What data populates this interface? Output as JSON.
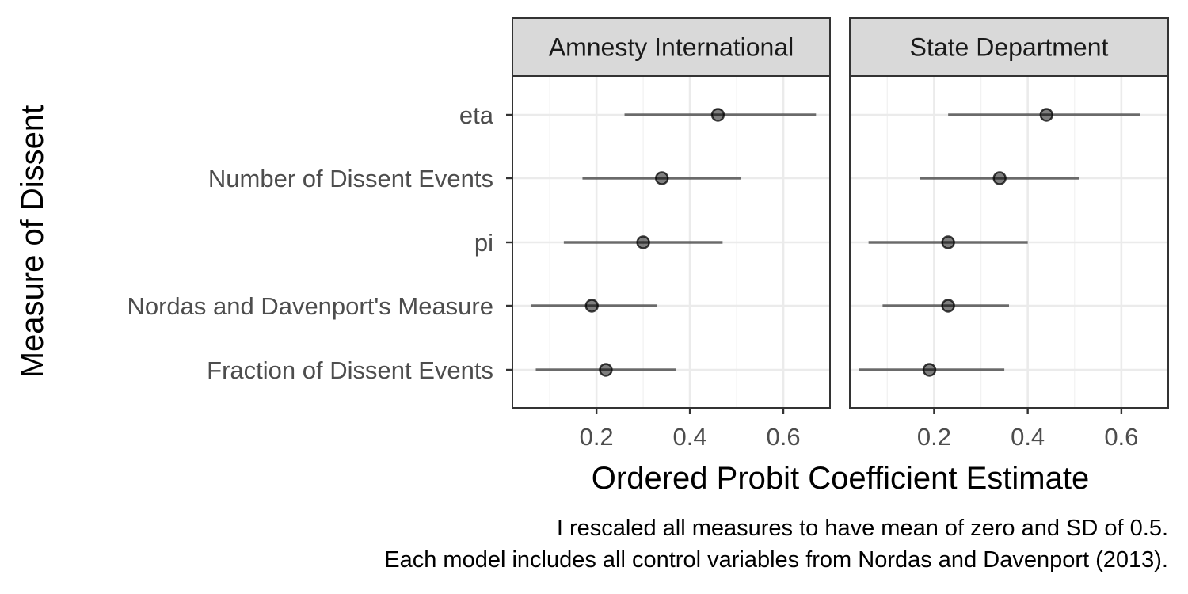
{
  "chart_data": {
    "type": "scatter",
    "subtype": "coefficient-plot-with-intervals",
    "xlabel": "Ordered Probit Coefficient Estimate",
    "ylabel": "Measure of Dissent",
    "caption_lines": [
      "I rescaled all measures to have mean of zero and SD of 0.5.",
      "Each model includes all control variables from Nordas and Davenport (2013)."
    ],
    "xlim": [
      0.02,
      0.7
    ],
    "x_ticks": [
      0.2,
      0.4,
      0.6
    ],
    "x_tick_labels": [
      "0.2",
      "0.4",
      "0.6"
    ],
    "categories": [
      "eta",
      "Number of Dissent Events",
      "pi",
      "Nordas and Davenport's Measure",
      "Fraction of Dissent Events"
    ],
    "grid": true,
    "facets": [
      {
        "name": "Amnesty International",
        "estimates": [
          {
            "category": "eta",
            "estimate": 0.46,
            "lower": 0.26,
            "upper": 0.67
          },
          {
            "category": "Number of Dissent Events",
            "estimate": 0.34,
            "lower": 0.17,
            "upper": 0.51
          },
          {
            "category": "pi",
            "estimate": 0.3,
            "lower": 0.13,
            "upper": 0.47
          },
          {
            "category": "Nordas and Davenport's Measure",
            "estimate": 0.19,
            "lower": 0.06,
            "upper": 0.33
          },
          {
            "category": "Fraction of Dissent Events",
            "estimate": 0.22,
            "lower": 0.07,
            "upper": 0.37
          }
        ]
      },
      {
        "name": "State Department",
        "estimates": [
          {
            "category": "eta",
            "estimate": 0.44,
            "lower": 0.23,
            "upper": 0.64
          },
          {
            "category": "Number of Dissent Events",
            "estimate": 0.34,
            "lower": 0.17,
            "upper": 0.51
          },
          {
            "category": "pi",
            "estimate": 0.23,
            "lower": 0.06,
            "upper": 0.4
          },
          {
            "category": "Nordas and Davenport's Measure",
            "estimate": 0.23,
            "lower": 0.09,
            "upper": 0.36
          },
          {
            "category": "Fraction of Dissent Events",
            "estimate": 0.19,
            "lower": 0.04,
            "upper": 0.35
          }
        ]
      }
    ]
  }
}
